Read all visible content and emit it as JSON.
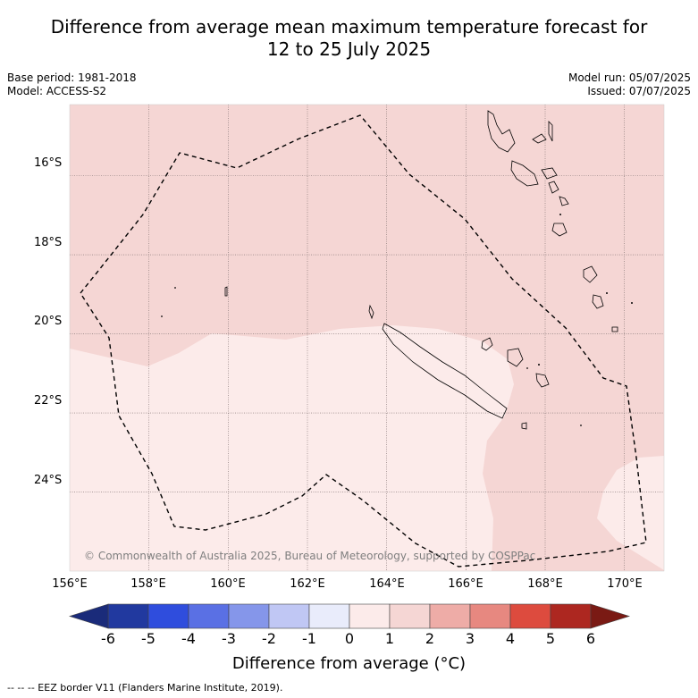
{
  "title_line1": "Difference from average mean maximum temperature forecast for",
  "title_line2": "12 to 25 July 2025",
  "meta_left": [
    "Base period: 1981-2018",
    "Model: ACCESS-S2"
  ],
  "meta_right": [
    "Model run: 05/07/2025",
    "Issued: 07/07/2025"
  ],
  "map": {
    "lon_range": [
      156,
      171
    ],
    "lat_range": [
      -26.0,
      -14.2
    ],
    "lon_ticks": [
      "156°E",
      "158°E",
      "160°E",
      "162°E",
      "164°E",
      "166°E",
      "168°E",
      "170°E"
    ],
    "lat_ticks": [
      "16°S",
      "18°S",
      "20°S",
      "22°S",
      "24°S"
    ],
    "grid": true,
    "copyright": "© Commonwealth of Australia 2025, Bureau of Meteorology, supported by COSPPac",
    "colors": {
      "anom_0_1": "#fcebea",
      "anom_1_2": "#f5d6d4",
      "coast": "#000000"
    }
  },
  "colorbar": {
    "ticks": [
      "-6",
      "-5",
      "-4",
      "-3",
      "-2",
      "-1",
      "0",
      "1",
      "2",
      "3",
      "4",
      "5",
      "6"
    ],
    "colors": [
      "#21399f",
      "#2f4ddd",
      "#5a70e4",
      "#8596ea",
      "#c0c7f4",
      "#e9ecfb",
      "#fcebea",
      "#f5d6d4",
      "#eeaca7",
      "#e78880",
      "#dd4b3e",
      "#ad2720"
    ],
    "under_color": "#1a2b7a",
    "over_color": "#7a1a14",
    "label": "Difference from average (°C)"
  },
  "footer": "--  --  -- EEZ border V11 (Flanders Marine Institute, 2019)."
}
